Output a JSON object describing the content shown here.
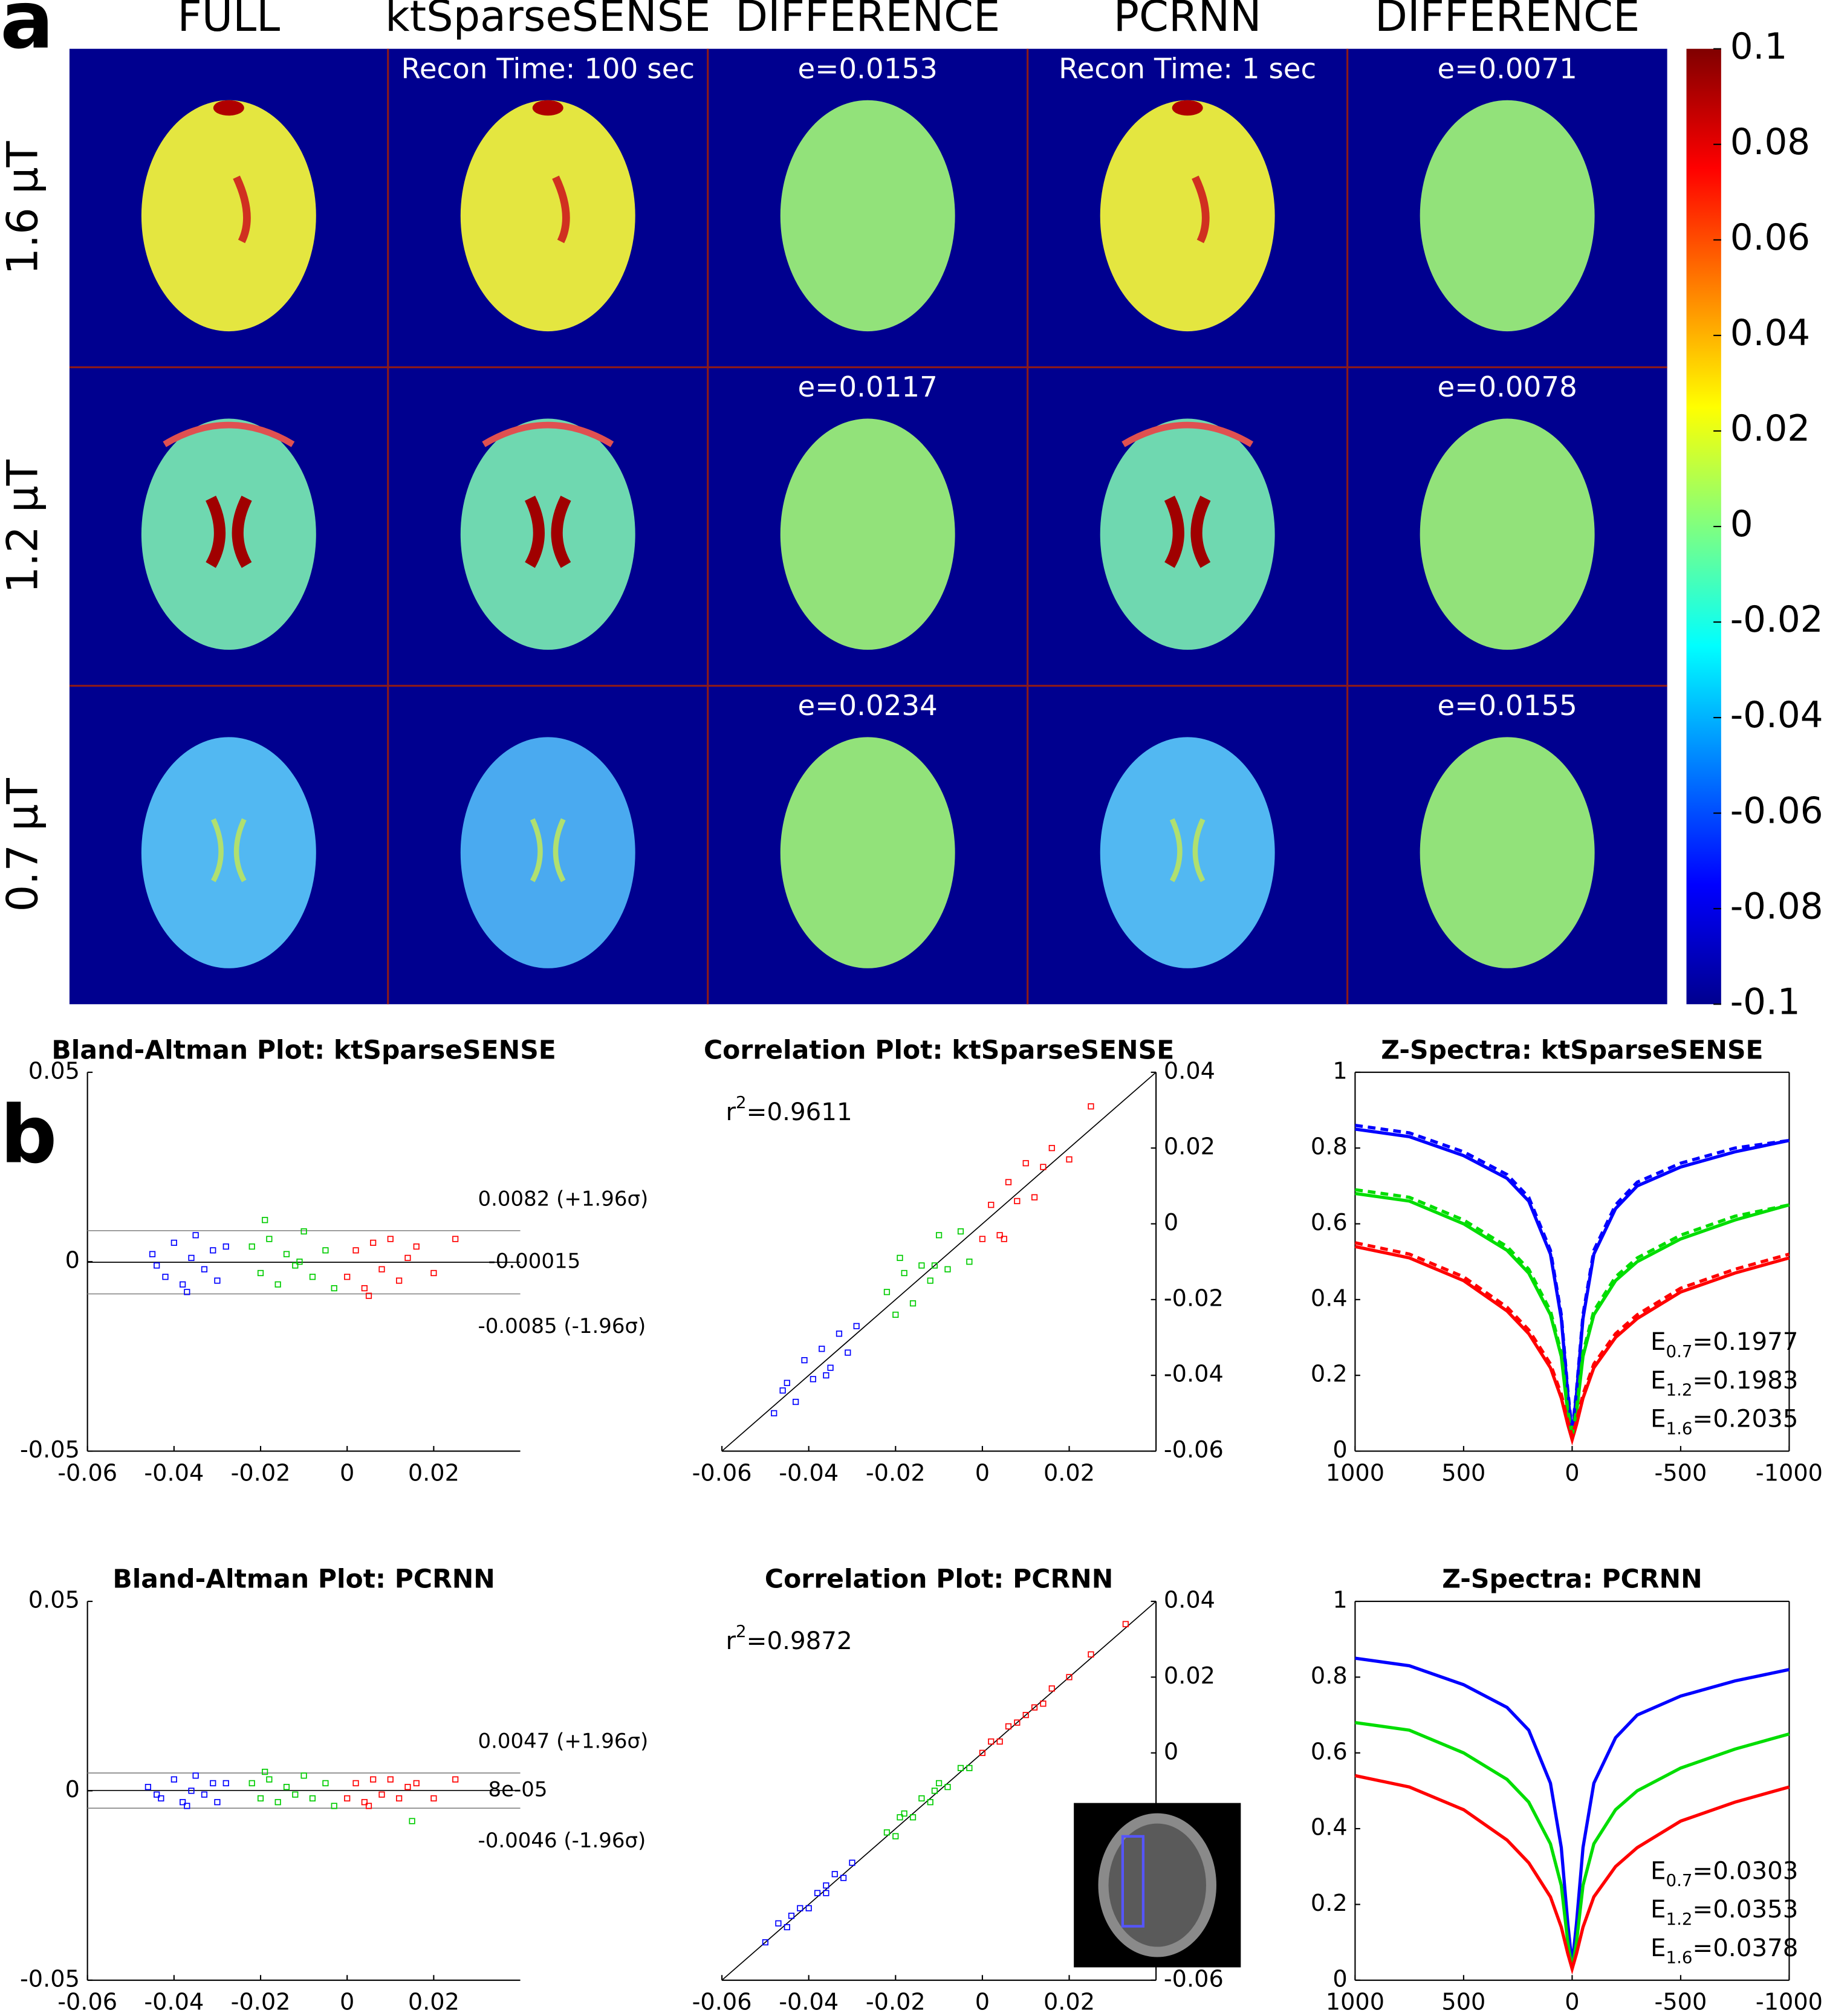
{
  "panel_labels": [
    "a",
    "b"
  ],
  "panel_a": {
    "column_titles": [
      "FULL",
      "ktSparseSENSE",
      "DIFFERENCE",
      "PCRNN",
      "DIFFERENCE"
    ],
    "row_labels": [
      "1.6 µT",
      "1.2 µT",
      "0.7 µT"
    ],
    "annotations": [
      [
        "",
        "Recon Time: 100 sec",
        "e=0.0153",
        "Recon Time: 1 sec",
        "e=0.0071"
      ],
      [
        "",
        "",
        "e=0.0117",
        "",
        "e=0.0078"
      ],
      [
        "",
        "",
        "e=0.0234",
        "",
        "e=0.0155"
      ]
    ],
    "colorbar": {
      "lim": [
        -0.1,
        0.1
      ],
      "ticks": [
        0.1,
        0.08,
        0.06,
        0.04,
        0.02,
        0,
        -0.02,
        -0.04,
        -0.06,
        -0.08,
        -0.1
      ]
    }
  },
  "chart_data": [
    {
      "type": "scatter",
      "title": "Bland-Altman Plot: ktSparseSENSE",
      "xlim": [
        -0.06,
        0.04
      ],
      "ylim": [
        -0.05,
        0.05
      ],
      "xticks": [
        -0.06,
        -0.04,
        -0.02,
        0,
        0.02
      ],
      "yticks": [
        -0.05,
        0,
        0.05
      ],
      "ref_lines": [
        {
          "value": 0.0082,
          "label": "0.0082 (+1.96σ)"
        },
        {
          "value": -0.00015,
          "label": "-0.00015"
        },
        {
          "value": -0.0085,
          "label": "-0.0085 (-1.96σ)"
        }
      ],
      "series": [
        {
          "color": "#0000ff",
          "x": [
            -0.045,
            -0.042,
            -0.04,
            -0.038,
            -0.036,
            -0.035,
            -0.033,
            -0.031,
            -0.03,
            -0.028,
            -0.044,
            -0.037
          ],
          "values": [
            0.002,
            -0.004,
            0.005,
            -0.006,
            0.001,
            0.007,
            -0.002,
            0.003,
            -0.005,
            0.004,
            -0.001,
            -0.008
          ]
        },
        {
          "color": "#00cc00",
          "x": [
            -0.022,
            -0.02,
            -0.018,
            -0.016,
            -0.014,
            -0.012,
            -0.01,
            -0.008,
            -0.005,
            -0.003,
            -0.019,
            -0.011
          ],
          "values": [
            0.004,
            -0.003,
            0.006,
            -0.006,
            0.002,
            -0.001,
            0.008,
            -0.004,
            0.003,
            -0.007,
            0.011,
            0.0
          ]
        },
        {
          "color": "#ff0000",
          "x": [
            0.0,
            0.002,
            0.004,
            0.006,
            0.008,
            0.01,
            0.012,
            0.014,
            0.016,
            0.02,
            0.025,
            0.005
          ],
          "values": [
            -0.004,
            0.003,
            -0.007,
            0.005,
            -0.002,
            0.006,
            -0.005,
            0.001,
            0.004,
            -0.003,
            0.006,
            -0.009
          ]
        }
      ]
    },
    {
      "type": "scatter",
      "title": "Correlation Plot: ktSparseSENSE",
      "y_axis_side": "right",
      "identity_line": true,
      "xlim": [
        -0.06,
        0.04
      ],
      "ylim": [
        -0.06,
        0.04
      ],
      "xticks": [
        -0.06,
        -0.04,
        -0.02,
        0,
        0.02
      ],
      "yticks": [
        -0.06,
        -0.04,
        -0.02,
        0,
        0.02,
        0.04
      ],
      "annotation": {
        "base": "r",
        "sup": "2",
        "text": "=0.9611"
      },
      "series": [
        {
          "color": "#0000ff",
          "x": [
            -0.048,
            -0.045,
            -0.043,
            -0.041,
            -0.039,
            -0.037,
            -0.035,
            -0.033,
            -0.031,
            -0.029,
            -0.046,
            -0.036
          ],
          "values": [
            -0.05,
            -0.042,
            -0.047,
            -0.036,
            -0.041,
            -0.033,
            -0.038,
            -0.029,
            -0.034,
            -0.027,
            -0.044,
            -0.04
          ]
        },
        {
          "color": "#00cc00",
          "x": [
            -0.022,
            -0.02,
            -0.018,
            -0.016,
            -0.014,
            -0.012,
            -0.01,
            -0.008,
            -0.005,
            -0.003,
            -0.019,
            -0.011
          ],
          "values": [
            -0.018,
            -0.024,
            -0.013,
            -0.021,
            -0.011,
            -0.015,
            -0.003,
            -0.012,
            -0.002,
            -0.01,
            -0.009,
            -0.011
          ]
        },
        {
          "color": "#ff0000",
          "x": [
            0.0,
            0.002,
            0.004,
            0.006,
            0.008,
            0.01,
            0.012,
            0.014,
            0.016,
            0.02,
            0.025,
            0.005
          ],
          "values": [
            -0.004,
            0.005,
            -0.003,
            0.011,
            0.006,
            0.016,
            0.007,
            0.015,
            0.02,
            0.017,
            0.031,
            -0.004
          ]
        }
      ]
    },
    {
      "type": "line",
      "title": "Z-Spectra: ktSparseSENSE",
      "xlim": [
        1000,
        -1000
      ],
      "ylim": [
        0,
        1
      ],
      "xticks": [
        1000,
        500,
        0,
        -500,
        -1000
      ],
      "yticks": [
        0,
        0.2,
        0.4,
        0.6,
        0.8,
        1
      ],
      "x": [
        1000,
        750,
        500,
        300,
        200,
        100,
        50,
        20,
        0,
        -20,
        -50,
        -100,
        -200,
        -300,
        -500,
        -750,
        -1000
      ],
      "annotations": [
        {
          "symbol": "E",
          "sub": "0.7",
          "text": "=0.1977"
        },
        {
          "symbol": "E",
          "sub": "1.2",
          "text": "=0.1983"
        },
        {
          "symbol": "E",
          "sub": "1.6",
          "text": "=0.2035"
        }
      ],
      "series": [
        {
          "color": "#0000ff",
          "values": [
            0.85,
            0.83,
            0.78,
            0.72,
            0.66,
            0.52,
            0.35,
            0.15,
            0.04,
            0.15,
            0.35,
            0.52,
            0.64,
            0.7,
            0.75,
            0.79,
            0.82
          ]
        },
        {
          "color": "#00dd00",
          "values": [
            0.68,
            0.66,
            0.6,
            0.53,
            0.47,
            0.36,
            0.25,
            0.1,
            0.03,
            0.1,
            0.25,
            0.36,
            0.45,
            0.5,
            0.56,
            0.61,
            0.65
          ]
        },
        {
          "color": "#ff0000",
          "values": [
            0.54,
            0.51,
            0.45,
            0.37,
            0.31,
            0.22,
            0.14,
            0.07,
            0.03,
            0.07,
            0.14,
            0.22,
            0.3,
            0.35,
            0.42,
            0.47,
            0.51
          ]
        },
        {
          "color": "#0000ff",
          "dash": true,
          "values": [
            0.86,
            0.84,
            0.79,
            0.73,
            0.67,
            0.53,
            0.36,
            0.16,
            0.05,
            0.16,
            0.36,
            0.53,
            0.65,
            0.71,
            0.76,
            0.8,
            0.82
          ]
        },
        {
          "color": "#00dd00",
          "dash": true,
          "values": [
            0.69,
            0.67,
            0.61,
            0.54,
            0.48,
            0.37,
            0.26,
            0.11,
            0.04,
            0.11,
            0.26,
            0.37,
            0.46,
            0.51,
            0.57,
            0.62,
            0.65
          ]
        },
        {
          "color": "#ff0000",
          "dash": true,
          "values": [
            0.55,
            0.52,
            0.46,
            0.38,
            0.32,
            0.23,
            0.15,
            0.08,
            0.04,
            0.08,
            0.15,
            0.23,
            0.31,
            0.36,
            0.43,
            0.48,
            0.52
          ]
        }
      ]
    },
    {
      "type": "scatter",
      "title": "Bland-Altman Plot: PCRNN",
      "xlim": [
        -0.06,
        0.04
      ],
      "ylim": [
        -0.05,
        0.05
      ],
      "xticks": [
        -0.06,
        -0.04,
        -0.02,
        0,
        0.02
      ],
      "yticks": [
        -0.05,
        0,
        0.05
      ],
      "ref_lines": [
        {
          "value": 0.0047,
          "label": "0.0047 (+1.96σ)"
        },
        {
          "value": 8e-05,
          "label": "8e-05"
        },
        {
          "value": -0.0046,
          "label": "-0.0046 (-1.96σ)"
        }
      ],
      "series": [
        {
          "color": "#0000ff",
          "x": [
            -0.046,
            -0.043,
            -0.04,
            -0.038,
            -0.036,
            -0.035,
            -0.033,
            -0.031,
            -0.03,
            -0.028,
            -0.044,
            -0.037
          ],
          "values": [
            0.001,
            -0.002,
            0.003,
            -0.003,
            0.0,
            0.004,
            -0.001,
            0.002,
            -0.003,
            0.002,
            -0.001,
            -0.004
          ]
        },
        {
          "color": "#00cc00",
          "x": [
            -0.022,
            -0.02,
            -0.018,
            -0.016,
            -0.014,
            -0.012,
            -0.01,
            -0.008,
            -0.005,
            -0.003,
            -0.019,
            0.015
          ],
          "values": [
            0.002,
            -0.002,
            0.003,
            -0.003,
            0.001,
            -0.001,
            0.004,
            -0.002,
            0.002,
            -0.004,
            0.005,
            -0.008
          ]
        },
        {
          "color": "#ff0000",
          "x": [
            0.0,
            0.002,
            0.004,
            0.006,
            0.008,
            0.01,
            0.012,
            0.014,
            0.016,
            0.02,
            0.025,
            0.005
          ],
          "values": [
            -0.002,
            0.002,
            -0.003,
            0.003,
            -0.001,
            0.003,
            -0.002,
            0.001,
            0.002,
            -0.002,
            0.003,
            -0.004
          ]
        }
      ]
    },
    {
      "type": "scatter",
      "title": "Correlation Plot: PCRNN",
      "y_axis_side": "right",
      "identity_line": true,
      "xlim": [
        -0.06,
        0.04
      ],
      "ylim": [
        -0.06,
        0.04
      ],
      "xticks": [
        -0.06,
        -0.04,
        -0.02,
        0,
        0.02
      ],
      "yticks": [
        -0.06,
        -0.04,
        -0.02,
        0,
        0.02,
        0.04
      ],
      "annotation": {
        "base": "r",
        "sup": "2",
        "text": "=0.9872"
      },
      "series": [
        {
          "color": "#0000ff",
          "x": [
            -0.05,
            -0.047,
            -0.045,
            -0.042,
            -0.04,
            -0.038,
            -0.036,
            -0.034,
            -0.032,
            -0.03,
            -0.044,
            -0.036
          ],
          "values": [
            -0.05,
            -0.045,
            -0.046,
            -0.041,
            -0.041,
            -0.037,
            -0.037,
            -0.032,
            -0.033,
            -0.029,
            -0.043,
            -0.035
          ]
        },
        {
          "color": "#00cc00",
          "x": [
            -0.022,
            -0.02,
            -0.018,
            -0.016,
            -0.014,
            -0.012,
            -0.01,
            -0.008,
            -0.005,
            -0.003,
            -0.019,
            -0.011
          ],
          "values": [
            -0.021,
            -0.022,
            -0.016,
            -0.017,
            -0.012,
            -0.013,
            -0.008,
            -0.009,
            -0.004,
            -0.004,
            -0.017,
            -0.01
          ]
        },
        {
          "color": "#ff0000",
          "x": [
            0.0,
            0.002,
            0.004,
            0.006,
            0.008,
            0.01,
            0.012,
            0.014,
            0.016,
            0.02,
            0.025,
            0.033
          ],
          "values": [
            0.0,
            0.003,
            0.003,
            0.007,
            0.008,
            0.01,
            0.012,
            0.013,
            0.017,
            0.02,
            0.026,
            0.034
          ]
        }
      ]
    },
    {
      "type": "line",
      "title": "Z-Spectra: PCRNN",
      "xlim": [
        1000,
        -1000
      ],
      "ylim": [
        0,
        1
      ],
      "xticks": [
        1000,
        500,
        0,
        -500,
        -1000
      ],
      "yticks": [
        0,
        0.2,
        0.4,
        0.6,
        0.8,
        1
      ],
      "x": [
        1000,
        750,
        500,
        300,
        200,
        100,
        50,
        20,
        0,
        -20,
        -50,
        -100,
        -200,
        -300,
        -500,
        -750,
        -1000
      ],
      "annotations": [
        {
          "symbol": "E",
          "sub": "0.7",
          "text": "=0.0303"
        },
        {
          "symbol": "E",
          "sub": "1.2",
          "text": "=0.0353"
        },
        {
          "symbol": "E",
          "sub": "1.6",
          "text": "=0.0378"
        }
      ],
      "series": [
        {
          "color": "#0000ff",
          "values": [
            0.85,
            0.83,
            0.78,
            0.72,
            0.66,
            0.52,
            0.35,
            0.15,
            0.04,
            0.15,
            0.35,
            0.52,
            0.64,
            0.7,
            0.75,
            0.79,
            0.82
          ]
        },
        {
          "color": "#00dd00",
          "values": [
            0.68,
            0.66,
            0.6,
            0.53,
            0.47,
            0.36,
            0.25,
            0.1,
            0.03,
            0.1,
            0.25,
            0.36,
            0.45,
            0.5,
            0.56,
            0.61,
            0.65
          ]
        },
        {
          "color": "#ff0000",
          "values": [
            0.54,
            0.51,
            0.45,
            0.37,
            0.31,
            0.22,
            0.14,
            0.07,
            0.03,
            0.07,
            0.14,
            0.22,
            0.3,
            0.35,
            0.42,
            0.47,
            0.51
          ]
        }
      ]
    }
  ]
}
